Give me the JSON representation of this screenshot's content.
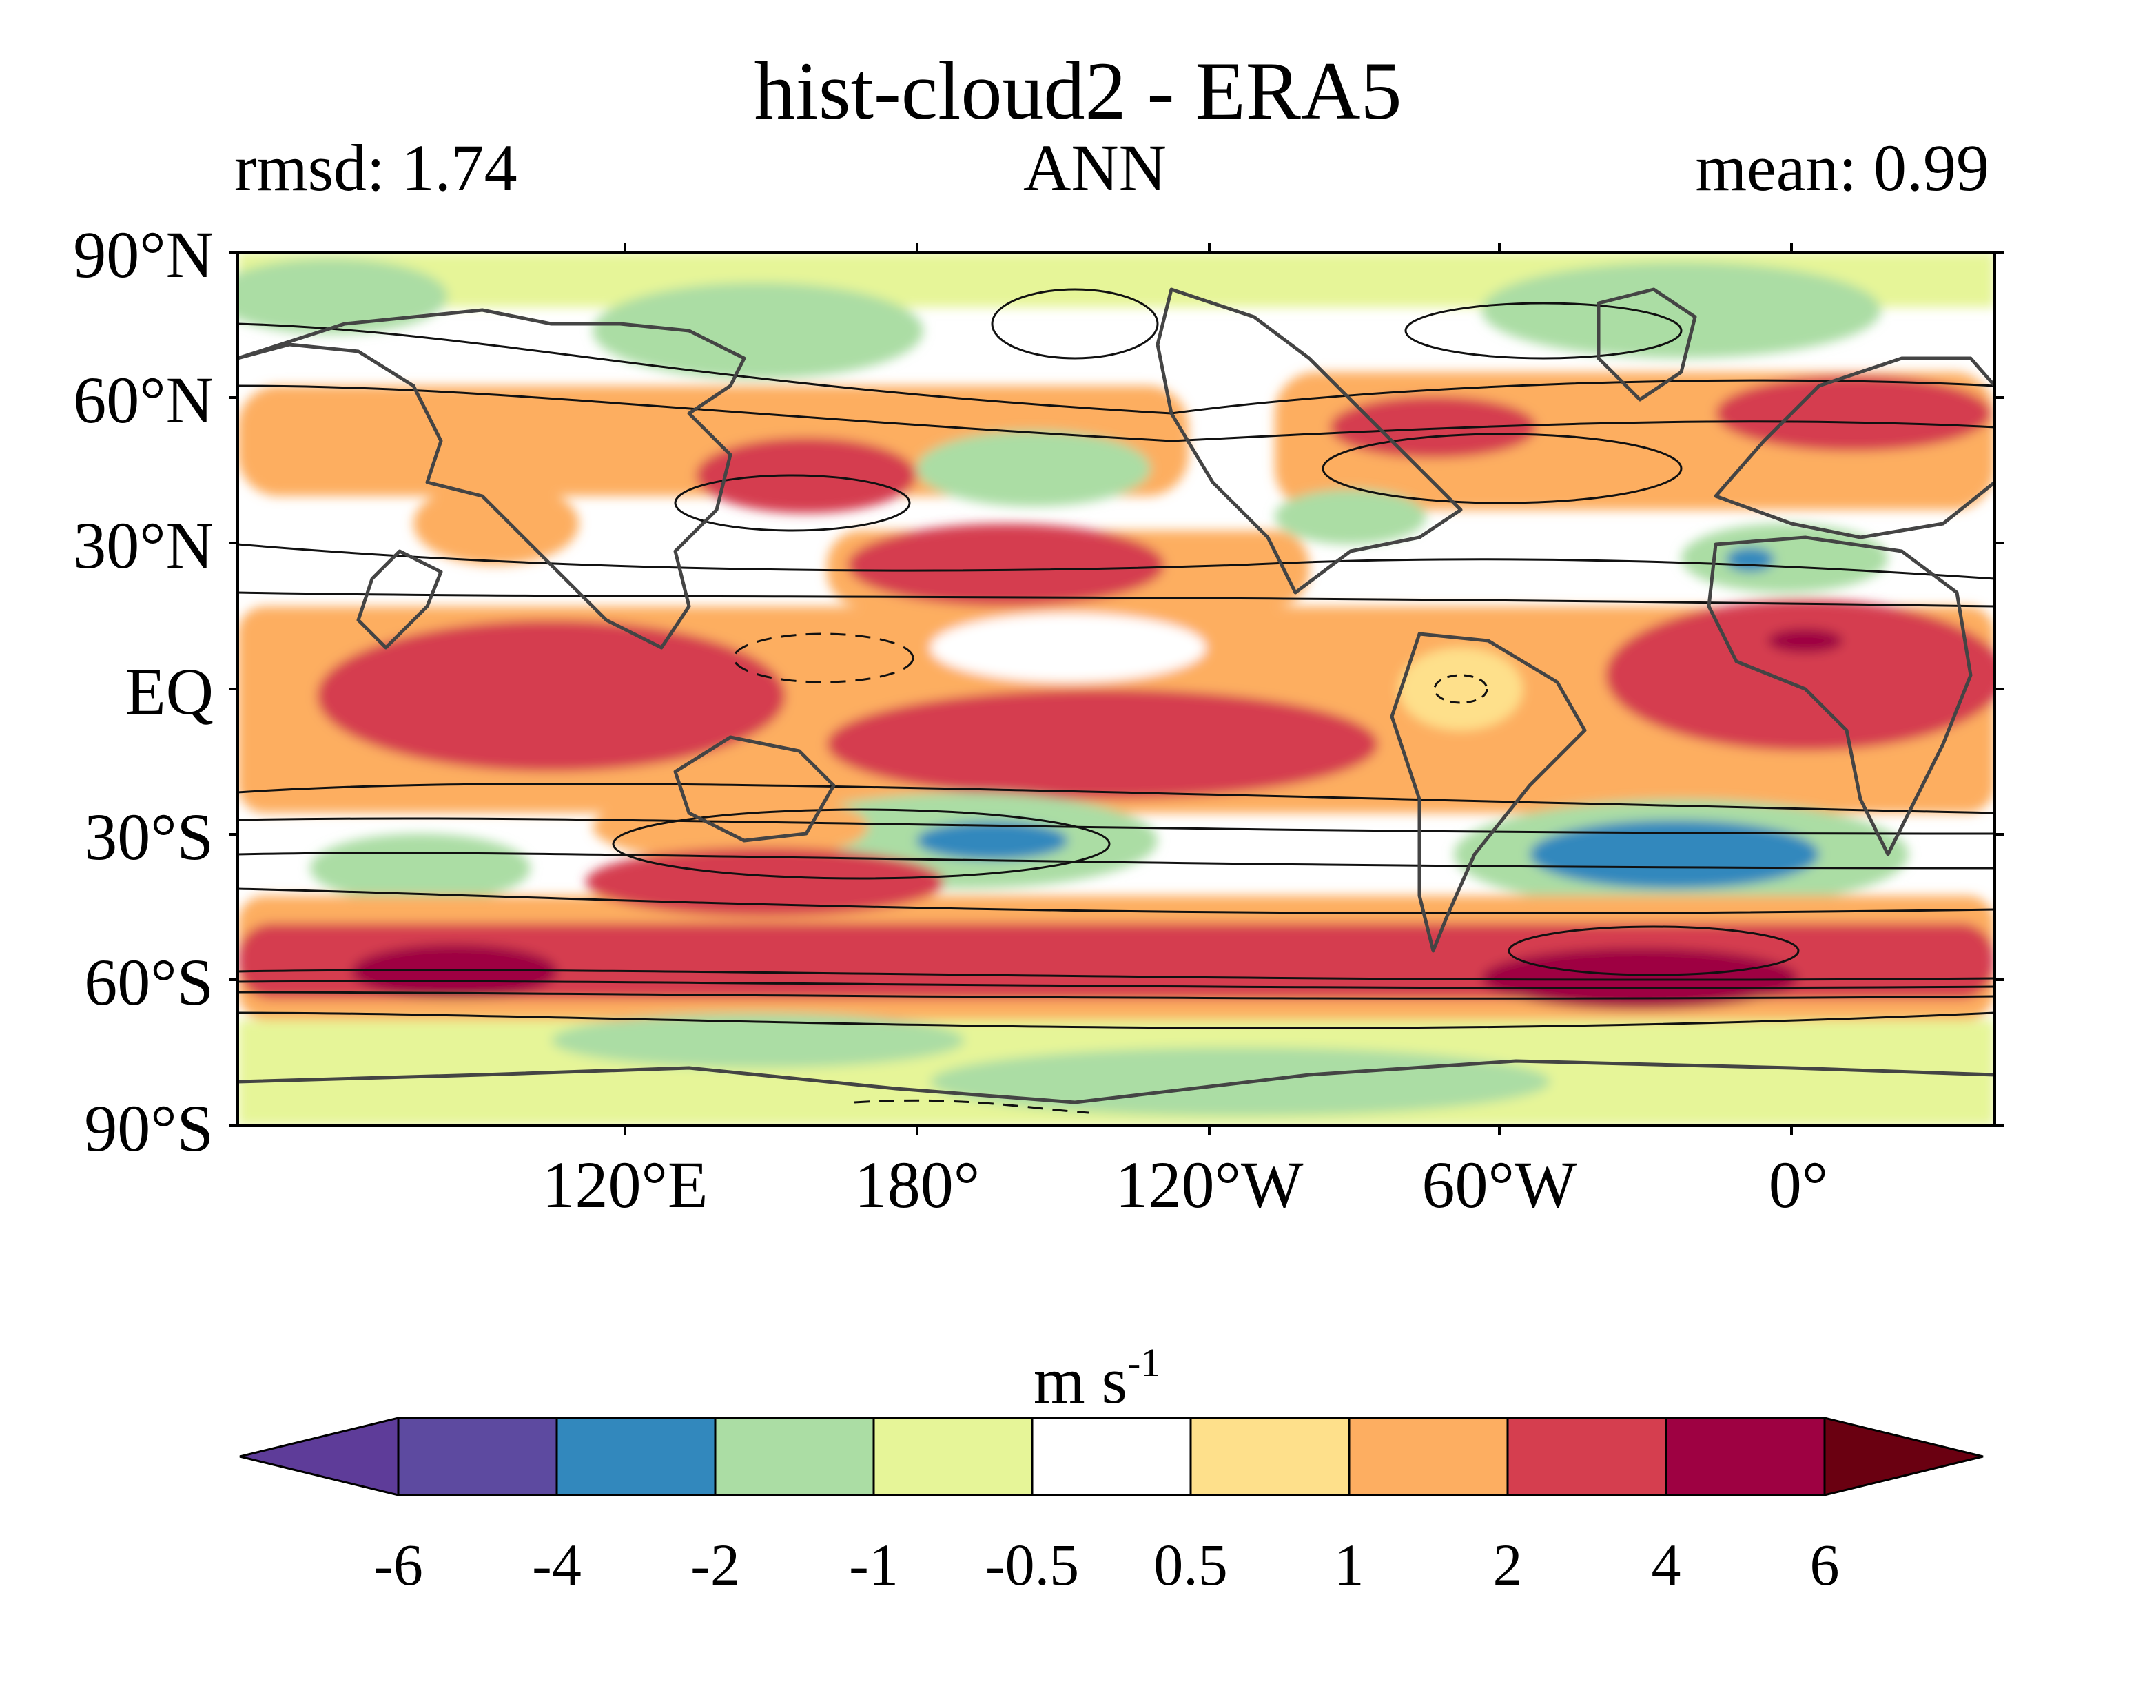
{
  "figure": {
    "title": "hist-cloud2 - ERA5",
    "subtitle_left": "rmsd: 1.74",
    "subtitle_center": "ANN",
    "subtitle_right": "mean: 0.99"
  },
  "map": {
    "lat_labels": [
      "90°N",
      "60°N",
      "30°N",
      "EQ",
      "30°S",
      "60°S",
      "90°S"
    ],
    "lon_labels": [
      "120°E",
      "180°",
      "120°W",
      "60°W",
      "0°"
    ],
    "colorbar": {
      "unit_main": "m s",
      "unit_exp": "-1",
      "tick_labels": [
        "-6",
        "-4",
        "-2",
        "-1",
        "-0.5",
        "0.5",
        "1",
        "2",
        "4",
        "6"
      ],
      "levels": [
        -6,
        -4,
        -2,
        -1,
        -0.5,
        0.5,
        1,
        2,
        4,
        6
      ],
      "colors": [
        "#5e3c99",
        "#5d4aa0",
        "#3288bd",
        "#abdda4",
        "#e6f598",
        "#ffffff",
        "#fee08b",
        "#fdae61",
        "#d53e4f",
        "#9e0142",
        "#6a0011"
      ]
    }
  }
}
